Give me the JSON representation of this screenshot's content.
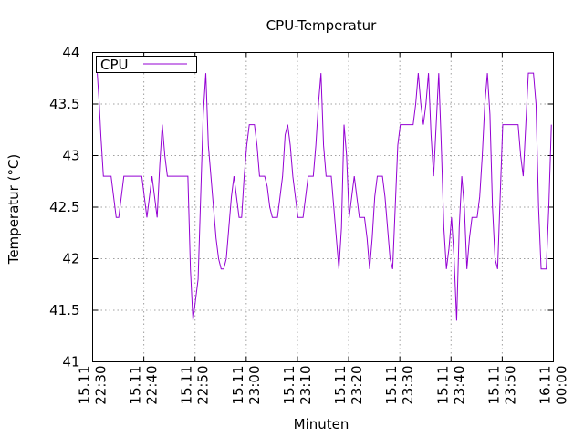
{
  "chart_data": {
    "type": "line",
    "title": "CPU-Temperatur",
    "xlabel": "Minuten",
    "ylabel": "Temperatur (°C)",
    "ylim": [
      41,
      44
    ],
    "yticks": [
      41,
      41.5,
      42,
      42.5,
      43,
      43.5,
      44
    ],
    "ytick_labels": [
      "41",
      "41.5",
      "42",
      "42.5",
      "43",
      "43.5",
      "44"
    ],
    "xlim": [
      "15.11 22:30",
      "16.11 00:00"
    ],
    "xticks": [
      {
        "date": "15.11",
        "time": "22:30",
        "minute": 0
      },
      {
        "date": "15.11",
        "time": "22:40",
        "minute": 10
      },
      {
        "date": "15.11",
        "time": "22:50",
        "minute": 20
      },
      {
        "date": "15.11",
        "time": "23:00",
        "minute": 30
      },
      {
        "date": "15.11",
        "time": "23:10",
        "minute": 40
      },
      {
        "date": "15.11",
        "time": "23:20",
        "minute": 50
      },
      {
        "date": "15.11",
        "time": "23:30",
        "minute": 60
      },
      {
        "date": "15.11",
        "time": "23:40",
        "minute": 70
      },
      {
        "date": "15.11",
        "time": "23:50",
        "minute": 80
      },
      {
        "date": "16.11",
        "time": "00:00",
        "minute": 90
      }
    ],
    "grid": true,
    "legend_position": "top-left",
    "series": [
      {
        "name": "CPU",
        "color": "#9400d3",
        "x": [
          0.9,
          1.3,
          1.6,
          2.1,
          2.6,
          3.1,
          3.6,
          4.1,
          4.6,
          5.1,
          5.6,
          6.1,
          6.6,
          7.1,
          7.6,
          8.1,
          8.6,
          9.1,
          9.6,
          10.1,
          10.6,
          11.1,
          11.6,
          12.1,
          12.6,
          13.1,
          13.6,
          14.1,
          14.6,
          15.1,
          15.6,
          16.1,
          16.6,
          17.1,
          17.6,
          18.1,
          18.6,
          19.1,
          19.6,
          20.1,
          20.6,
          21.1,
          21.6,
          22.1,
          22.6,
          23.1,
          23.6,
          24.1,
          24.6,
          25.1,
          25.6,
          26.1,
          26.6,
          27.1,
          27.6,
          28.1,
          28.6,
          29.1,
          29.6,
          30.1,
          30.6,
          31.1,
          31.6,
          32.1,
          32.6,
          33.1,
          33.6,
          34.1,
          34.6,
          35.1,
          35.6,
          36.1,
          36.6,
          37.1,
          37.6,
          38.1,
          38.6,
          39.1,
          39.6,
          40.1,
          40.6,
          41.1,
          41.6,
          42.1,
          42.6,
          43.1,
          43.6,
          44.1,
          44.6,
          45.1,
          45.6,
          46.1,
          46.6,
          47.1,
          47.6,
          48.1,
          48.6,
          49.1,
          49.6,
          50.1,
          50.6,
          51.1,
          51.6,
          52.1,
          52.6,
          53.1,
          53.6,
          54.1,
          54.6,
          55.1,
          55.6,
          56.1,
          56.6,
          57.1,
          57.6,
          58.1,
          58.6,
          59.1,
          59.6,
          60.1,
          60.6,
          61.1,
          61.6,
          62.1,
          62.6,
          63.1,
          63.6,
          64.1,
          64.6,
          65.1,
          65.6,
          66.1,
          66.6,
          67.1,
          67.6,
          68.1,
          68.6,
          69.1,
          69.6,
          70.1,
          70.6,
          71.1,
          71.6,
          72.1,
          72.6,
          73.1,
          73.6,
          74.1,
          74.6,
          75.1,
          75.6,
          76.1,
          76.6,
          77.1,
          77.6,
          78.1,
          78.6,
          79.1,
          79.6,
          80.1,
          80.6,
          81.1,
          81.6,
          82.1,
          82.6,
          83.1,
          83.6,
          84.1,
          84.6,
          85.1,
          85.6,
          86.1,
          86.6,
          87.1,
          87.6,
          88.1,
          88.6,
          89.1,
          89.6
        ],
        "values": [
          43.8,
          43.5,
          43.2,
          42.8,
          42.8,
          42.8,
          42.8,
          42.6,
          42.4,
          42.4,
          42.6,
          42.8,
          42.8,
          42.8,
          42.8,
          42.8,
          42.8,
          42.8,
          42.8,
          42.6,
          42.4,
          42.6,
          42.8,
          42.6,
          42.4,
          42.9,
          43.3,
          43.0,
          42.8,
          42.8,
          42.8,
          42.8,
          42.8,
          42.8,
          42.8,
          42.8,
          42.8,
          41.9,
          41.4,
          41.6,
          41.8,
          42.6,
          43.4,
          43.8,
          43.1,
          42.8,
          42.5,
          42.2,
          42.0,
          41.9,
          41.9,
          42.0,
          42.3,
          42.6,
          42.8,
          42.6,
          42.4,
          42.4,
          42.8,
          43.1,
          43.3,
          43.3,
          43.3,
          43.1,
          42.8,
          42.8,
          42.8,
          42.7,
          42.5,
          42.4,
          42.4,
          42.4,
          42.6,
          42.8,
          43.2,
          43.3,
          43.1,
          42.8,
          42.6,
          42.4,
          42.4,
          42.4,
          42.6,
          42.8,
          42.8,
          42.8,
          43.1,
          43.5,
          43.8,
          43.1,
          42.8,
          42.8,
          42.8,
          42.5,
          42.2,
          41.9,
          42.3,
          43.3,
          43.0,
          42.4,
          42.6,
          42.8,
          42.6,
          42.4,
          42.4,
          42.4,
          42.2,
          41.9,
          42.2,
          42.6,
          42.8,
          42.8,
          42.8,
          42.6,
          42.3,
          42.0,
          41.9,
          42.5,
          43.1,
          43.3,
          43.3,
          43.3,
          43.3,
          43.3,
          43.3,
          43.5,
          43.8,
          43.5,
          43.3,
          43.5,
          43.8,
          43.2,
          42.8,
          43.3,
          43.8,
          43.1,
          42.3,
          41.9,
          42.1,
          42.4,
          42.0,
          41.4,
          42.3,
          42.8,
          42.5,
          41.9,
          42.2,
          42.4,
          42.4,
          42.4,
          42.6,
          43.0,
          43.5,
          43.8,
          43.4,
          42.5,
          42.0,
          41.9,
          42.6,
          43.3,
          43.3,
          43.3,
          43.3,
          43.3,
          43.3,
          43.3,
          43.0,
          42.8,
          43.3,
          43.8,
          43.8,
          43.8,
          43.5,
          42.5,
          41.9,
          41.9,
          41.9,
          42.5,
          43.3
        ]
      }
    ]
  }
}
